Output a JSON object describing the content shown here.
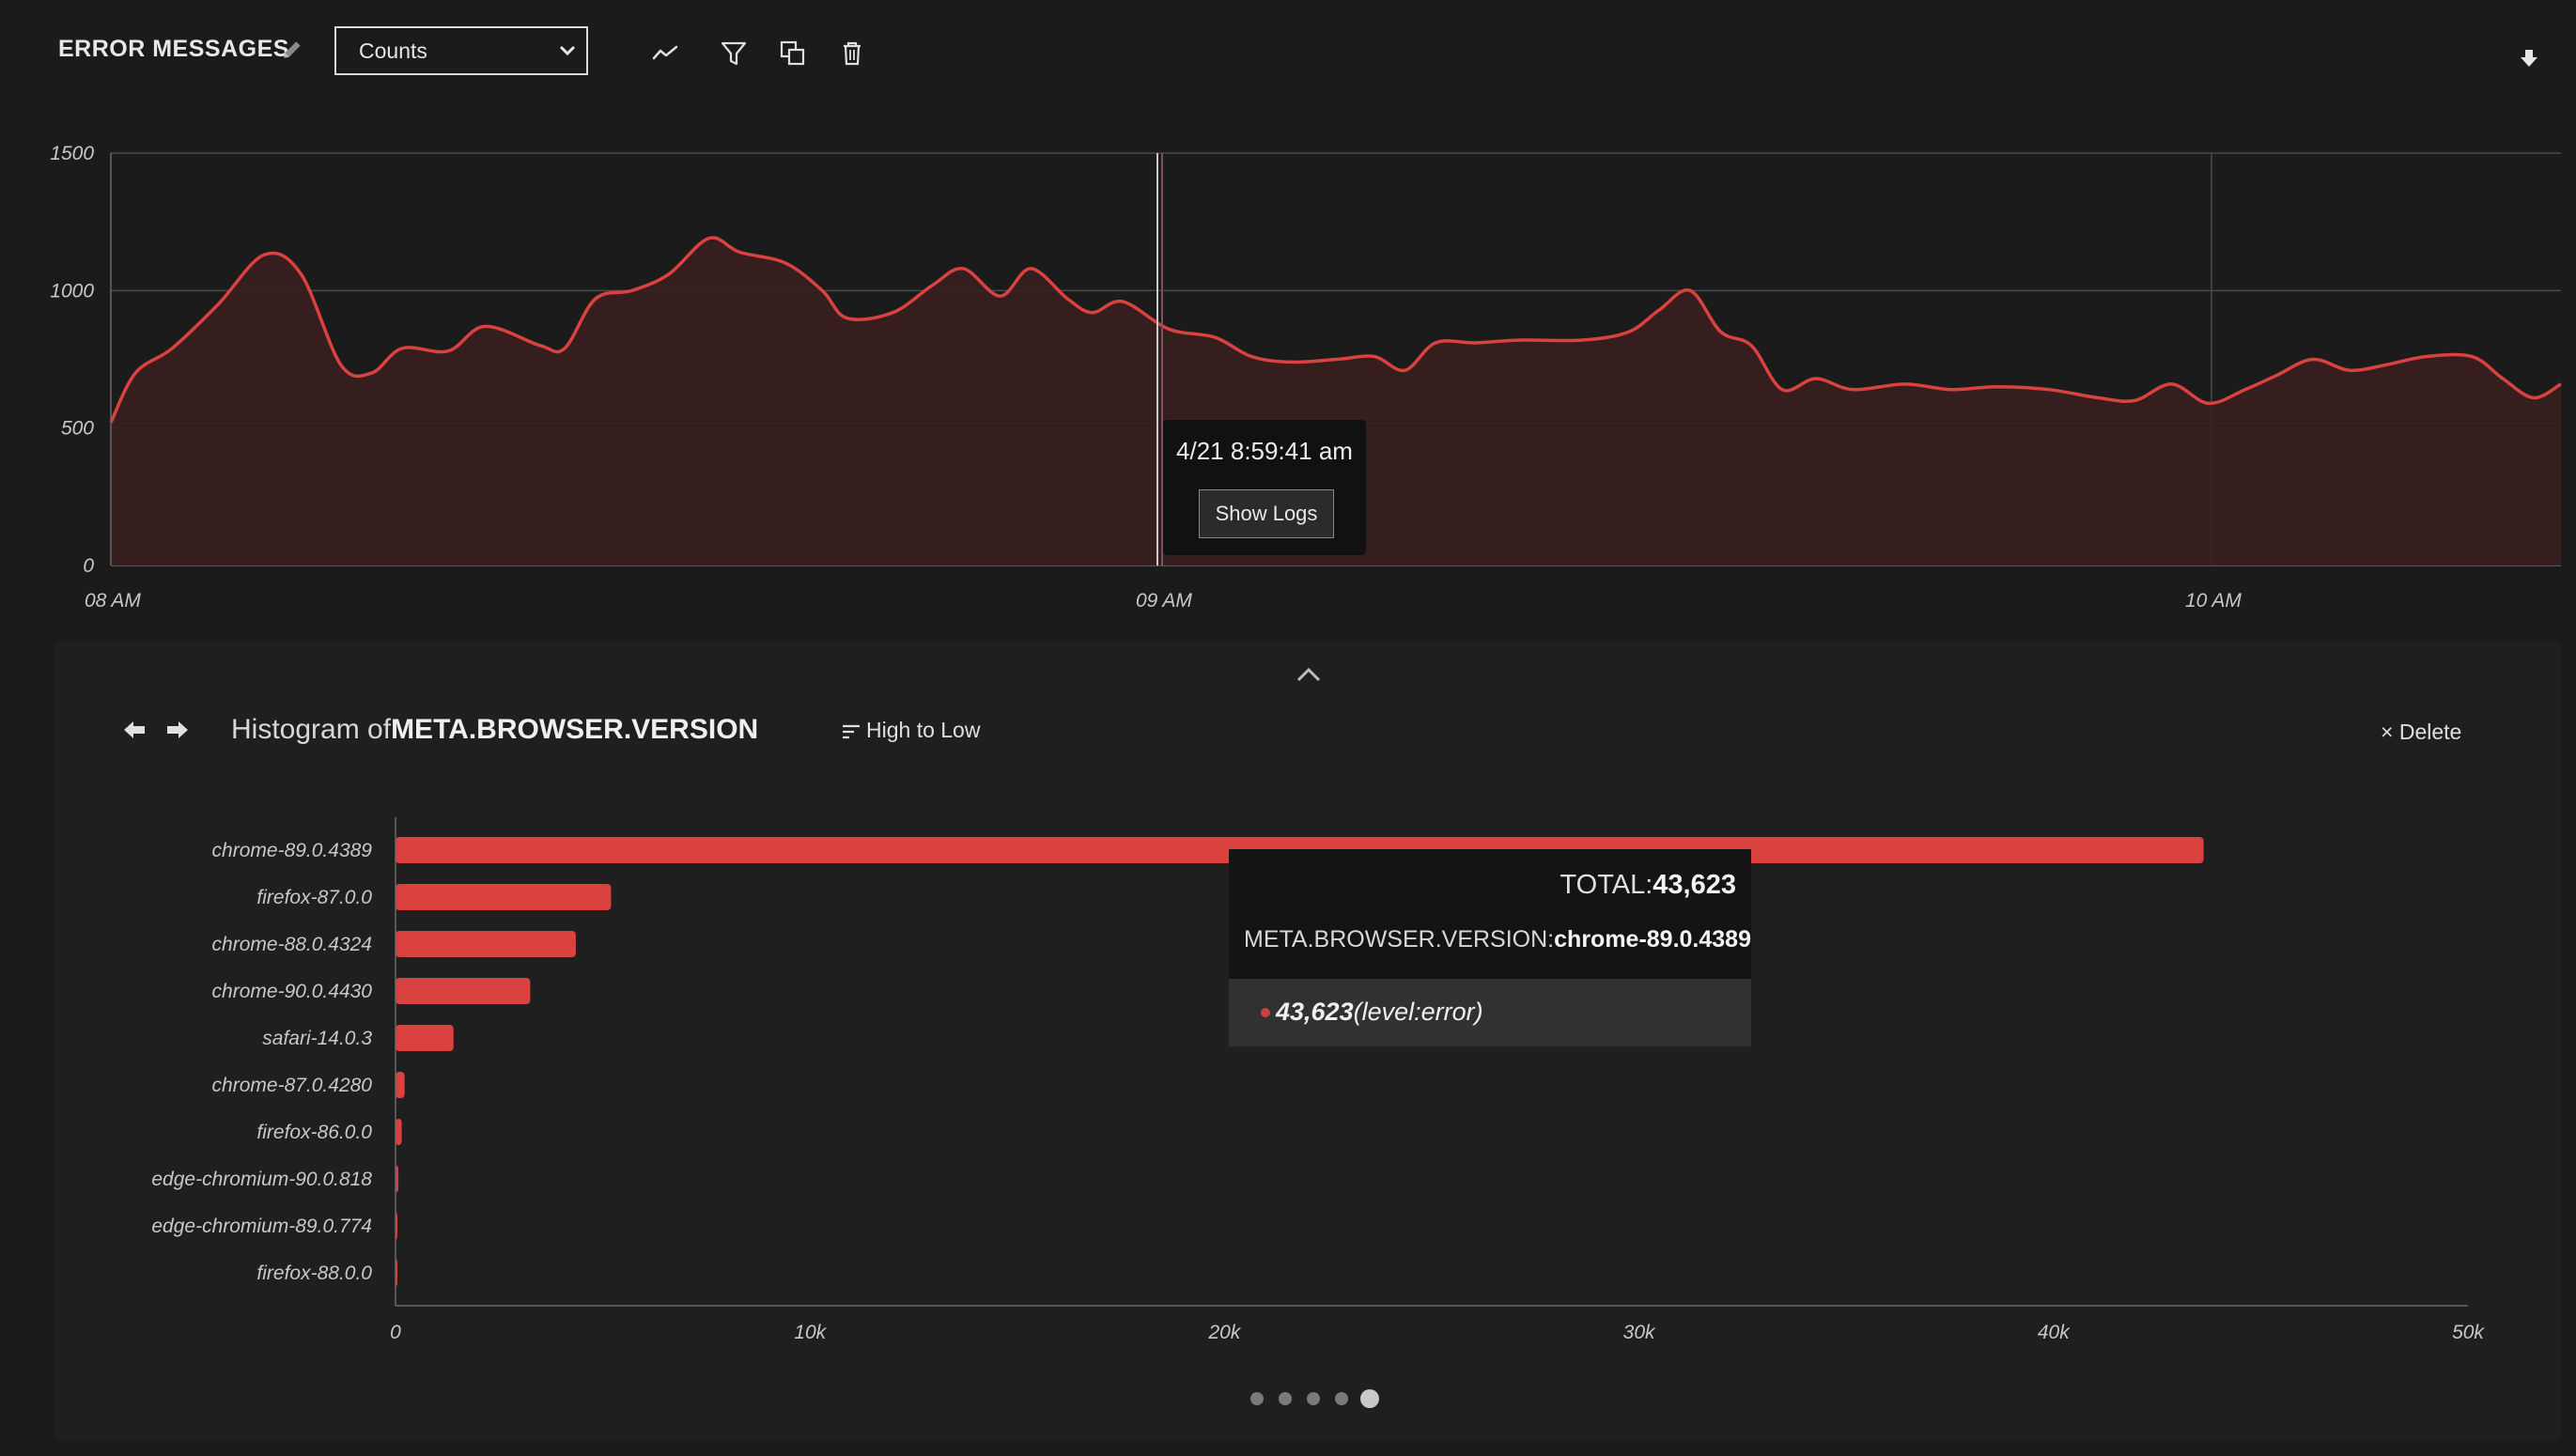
{
  "header": {
    "title": "ERROR MESSAGES",
    "select_value": "Counts"
  },
  "main_chart": {
    "y_ticks": [
      "1500",
      "1000",
      "500",
      "0"
    ],
    "x_ticks": [
      "08 AM",
      "09 AM",
      "10 AM"
    ],
    "tooltip_time": "4/21 8:59:41 am",
    "show_logs_label": "Show Logs"
  },
  "histogram": {
    "title_prefix": "Histogram of",
    "field": "META.BROWSER.VERSION",
    "sort_label": "High to Low",
    "delete_label": "Delete",
    "delete_symbol": "×",
    "tooltip": {
      "total_label": "TOTAL:",
      "total_value": "43,623",
      "key_label": "META.BROWSER.VERSION:",
      "key_value": "chrome-89.0.4389",
      "row_value": "43,623",
      "row_label": "(level:error)"
    }
  },
  "chart_data": [
    {
      "type": "area",
      "x_ticks": [
        "08 AM",
        "09 AM",
        "10 AM"
      ],
      "ylim": [
        0,
        1500
      ],
      "y_ticks": [
        0,
        500,
        1000,
        1500
      ],
      "grid": true,
      "series": [
        {
          "color": "#d9423e",
          "points": [
            [
              0,
              520
            ],
            [
              8,
              700
            ],
            [
              20,
              790
            ],
            [
              35,
              950
            ],
            [
              50,
              1130
            ],
            [
              62,
              1060
            ],
            [
              75,
              730
            ],
            [
              85,
              700
            ],
            [
              95,
              790
            ],
            [
              110,
              780
            ],
            [
              122,
              870
            ],
            [
              140,
              800
            ],
            [
              148,
              790
            ],
            [
              158,
              970
            ],
            [
              170,
              1000
            ],
            [
              182,
              1060
            ],
            [
              195,
              1190
            ],
            [
              205,
              1140
            ],
            [
              220,
              1100
            ],
            [
              232,
              1000
            ],
            [
              240,
              900
            ],
            [
              255,
              920
            ],
            [
              268,
              1020
            ],
            [
              278,
              1080
            ],
            [
              290,
              980
            ],
            [
              300,
              1080
            ],
            [
              312,
              970
            ],
            [
              320,
              920
            ],
            [
              330,
              960
            ],
            [
              345,
              860
            ],
            [
              360,
              830
            ],
            [
              372,
              760
            ],
            [
              385,
              740
            ],
            [
              400,
              750
            ],
            [
              412,
              760
            ],
            [
              422,
              710
            ],
            [
              432,
              810
            ],
            [
              445,
              810
            ],
            [
              460,
              820
            ],
            [
              480,
              820
            ],
            [
              495,
              850
            ],
            [
              505,
              930
            ],
            [
              515,
              1000
            ],
            [
              525,
              850
            ],
            [
              535,
              800
            ],
            [
              545,
              640
            ],
            [
              556,
              680
            ],
            [
              568,
              640
            ],
            [
              585,
              660
            ],
            [
              600,
              640
            ],
            [
              615,
              650
            ],
            [
              632,
              640
            ],
            [
              648,
              610
            ],
            [
              660,
              600
            ],
            [
              672,
              660
            ],
            [
              684,
              590
            ],
            [
              696,
              640
            ],
            [
              706,
              690
            ],
            [
              718,
              750
            ],
            [
              730,
              710
            ],
            [
              742,
              730
            ],
            [
              755,
              760
            ],
            [
              770,
              760
            ],
            [
              780,
              680
            ],
            [
              790,
              610
            ],
            [
              799,
              660
            ]
          ]
        }
      ]
    },
    {
      "type": "bar",
      "orientation": "horizontal",
      "categories": [
        "chrome-89.0.4389",
        "firefox-87.0.0",
        "chrome-88.0.4324",
        "chrome-90.0.4430",
        "safari-14.0.3",
        "chrome-87.0.4280",
        "firefox-86.0.0",
        "edge-chromium-90.0.818",
        "edge-chromium-89.0.774",
        "firefox-88.0.0"
      ],
      "values": [
        43623,
        5200,
        4350,
        3250,
        1400,
        220,
        150,
        70,
        30,
        20
      ],
      "xlim": [
        0,
        50000
      ],
      "x_ticks": [
        "0",
        "10k",
        "20k",
        "30k",
        "40k",
        "50k"
      ],
      "bar_color": "#d9423e"
    }
  ],
  "pagination": {
    "count": 5,
    "active": 4
  }
}
